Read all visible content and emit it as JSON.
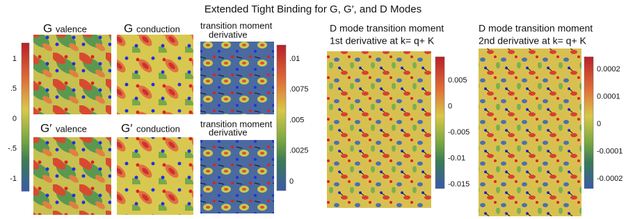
{
  "title": "Extended Tight Binding for G, G′, and D Modes",
  "panels": [
    {
      "symbol": "G",
      "label": "valence"
    },
    {
      "symbol": "G",
      "label": "conduction"
    },
    {
      "label": [
        "transition moment",
        "derivative"
      ]
    },
    {
      "symbol": "G′",
      "label": "valence"
    },
    {
      "symbol": "G′",
      "label": "conduction"
    },
    {
      "label": [
        "transition moment",
        "derivative"
      ]
    },
    {
      "label": [
        "D mode transition moment",
        "1st derivative at k= q+ K"
      ]
    },
    {
      "label": [
        "D mode transition moment",
        "2nd derivative at k= q+ K"
      ]
    }
  ],
  "colorbars": [
    {
      "ticks": [
        "1",
        ".5",
        "0",
        "-.5",
        "-1"
      ]
    },
    {
      "ticks": [
        ".01",
        ".0075",
        ".005",
        ".0025",
        "0"
      ]
    },
    {
      "ticks": [
        "0.005",
        "0",
        "-0.005",
        "-0.01",
        "-0.015"
      ]
    },
    {
      "ticks": [
        "0.0002",
        "0.0001",
        "0",
        "-0.0001",
        "-0.0002"
      ]
    }
  ]
}
